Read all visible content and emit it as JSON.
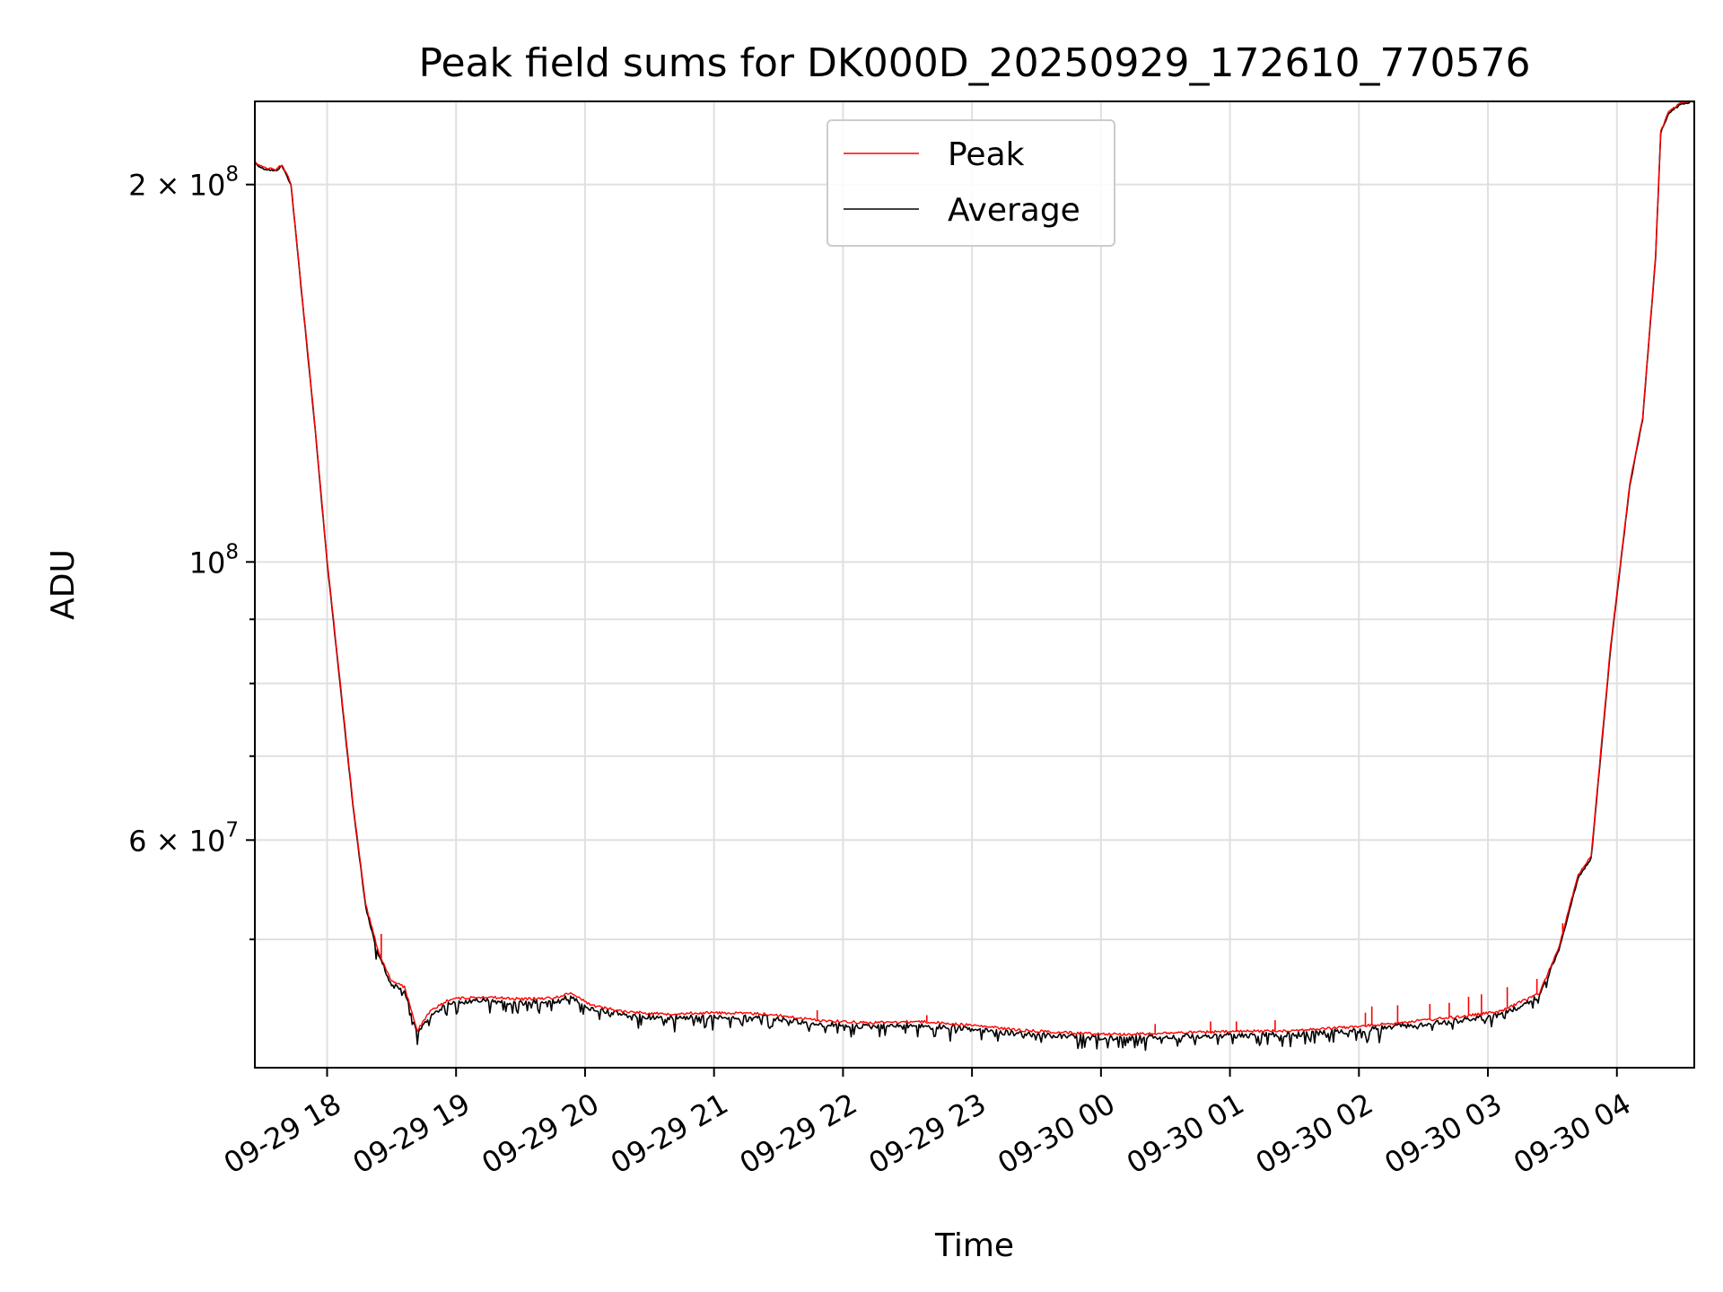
{
  "chart_data": {
    "type": "line",
    "title": "Peak field sums for DK000D_20250929_172610_770576",
    "xlabel": "Time",
    "ylabel": "ADU",
    "yscale": "log",
    "xlim": [
      17.44,
      28.6
    ],
    "ylim": [
      39500000,
      233000000
    ],
    "x_unit": "hours since 2025-09-29 00:00",
    "x_ticks": [
      {
        "value": 18,
        "label": "09-29 18"
      },
      {
        "value": 19,
        "label": "09-29 19"
      },
      {
        "value": 20,
        "label": "09-29 20"
      },
      {
        "value": 21,
        "label": "09-29 21"
      },
      {
        "value": 22,
        "label": "09-29 22"
      },
      {
        "value": 23,
        "label": "09-29 23"
      },
      {
        "value": 24,
        "label": "09-30 00"
      },
      {
        "value": 25,
        "label": "09-30 01"
      },
      {
        "value": 26,
        "label": "09-30 02"
      },
      {
        "value": 27,
        "label": "09-30 03"
      },
      {
        "value": 28,
        "label": "09-30 04"
      }
    ],
    "y_major_ticks": [
      {
        "value": 60000000,
        "mantissa": "6",
        "exponent": "7"
      },
      {
        "value": 100000000,
        "mantissa": "",
        "exponent": "8"
      },
      {
        "value": 200000000,
        "mantissa": "2",
        "exponent": "8"
      }
    ],
    "y_minor_ticks": [
      50000000,
      70000000,
      80000000,
      90000000
    ],
    "legend": {
      "position": "upper center",
      "entries": [
        {
          "label": "Peak",
          "color": "#ff0000"
        },
        {
          "label": "Average",
          "color": "#000000"
        }
      ]
    },
    "series": [
      {
        "name": "Average",
        "color": "#000000",
        "points": [
          [
            17.44,
            208000000
          ],
          [
            17.5,
            206000000
          ],
          [
            17.6,
            205000000
          ],
          [
            17.65,
            207000000
          ],
          [
            17.72,
            200000000
          ],
          [
            17.8,
            165000000
          ],
          [
            17.9,
            130000000
          ],
          [
            18.0,
            100000000
          ],
          [
            18.1,
            80000000
          ],
          [
            18.2,
            64000000
          ],
          [
            18.3,
            53000000
          ],
          [
            18.4,
            48500000
          ],
          [
            18.5,
            46000000
          ],
          [
            18.6,
            45500000
          ],
          [
            18.7,
            42000000
          ],
          [
            18.8,
            43500000
          ],
          [
            18.95,
            44500000
          ],
          [
            19.2,
            44700000
          ],
          [
            19.5,
            44500000
          ],
          [
            19.75,
            44600000
          ],
          [
            19.9,
            45000000
          ],
          [
            20.05,
            44000000
          ],
          [
            20.3,
            43500000
          ],
          [
            20.6,
            43300000
          ],
          [
            21.0,
            43400000
          ],
          [
            21.4,
            43300000
          ],
          [
            21.8,
            42800000
          ],
          [
            22.2,
            42600000
          ],
          [
            22.6,
            42700000
          ],
          [
            23.0,
            42400000
          ],
          [
            23.4,
            42000000
          ],
          [
            23.8,
            41800000
          ],
          [
            24.2,
            41700000
          ],
          [
            24.5,
            41800000
          ],
          [
            25.0,
            41900000
          ],
          [
            25.5,
            42000000
          ],
          [
            26.0,
            42300000
          ],
          [
            26.4,
            42700000
          ],
          [
            26.8,
            43100000
          ],
          [
            27.1,
            43500000
          ],
          [
            27.4,
            45000000
          ],
          [
            27.55,
            49000000
          ],
          [
            27.7,
            56000000
          ],
          [
            27.8,
            58000000
          ],
          [
            27.95,
            85000000
          ],
          [
            28.1,
            115000000
          ],
          [
            28.2,
            130000000
          ],
          [
            28.3,
            175000000
          ],
          [
            28.34,
            220000000
          ],
          [
            28.4,
            228000000
          ],
          [
            28.5,
            232000000
          ],
          [
            28.6,
            233000000
          ]
        ]
      },
      {
        "name": "Peak",
        "color": "#ff0000",
        "points": [
          [
            17.44,
            208500000
          ],
          [
            17.5,
            206500000
          ],
          [
            17.6,
            205500000
          ],
          [
            17.65,
            207500000
          ],
          [
            17.72,
            200500000
          ],
          [
            17.8,
            165500000
          ],
          [
            17.9,
            130500000
          ],
          [
            18.0,
            100500000
          ],
          [
            18.1,
            80500000
          ],
          [
            18.2,
            64300000
          ],
          [
            18.3,
            53300000
          ],
          [
            18.4,
            48800000
          ],
          [
            18.5,
            46300000
          ],
          [
            18.6,
            45800000
          ],
          [
            18.7,
            42300000
          ],
          [
            18.8,
            43800000
          ],
          [
            18.95,
            44800000
          ],
          [
            19.2,
            45000000
          ],
          [
            19.5,
            44800000
          ],
          [
            19.75,
            44900000
          ],
          [
            19.9,
            45300000
          ],
          [
            20.05,
            44300000
          ],
          [
            20.3,
            43800000
          ],
          [
            20.6,
            43600000
          ],
          [
            21.0,
            43700000
          ],
          [
            21.4,
            43600000
          ],
          [
            21.8,
            43100000
          ],
          [
            22.2,
            42900000
          ],
          [
            22.6,
            43000000
          ],
          [
            23.0,
            42700000
          ],
          [
            23.4,
            42300000
          ],
          [
            23.8,
            42100000
          ],
          [
            24.2,
            42000000
          ],
          [
            24.5,
            42100000
          ],
          [
            25.0,
            42200000
          ],
          [
            25.5,
            42300000
          ],
          [
            26.0,
            42600000
          ],
          [
            26.4,
            43000000
          ],
          [
            26.8,
            43400000
          ],
          [
            27.1,
            43800000
          ],
          [
            27.4,
            45300000
          ],
          [
            27.55,
            49300000
          ],
          [
            27.7,
            56300000
          ],
          [
            27.8,
            58300000
          ],
          [
            27.95,
            85500000
          ],
          [
            28.1,
            115500000
          ],
          [
            28.2,
            130500000
          ],
          [
            28.3,
            175500000
          ],
          [
            28.34,
            220500000
          ],
          [
            28.4,
            228500000
          ],
          [
            28.5,
            232500000
          ],
          [
            28.6,
            233000000
          ]
        ]
      }
    ],
    "peak_spikes": [
      {
        "x": 18.42,
        "y": 50500000
      },
      {
        "x": 21.8,
        "y": 43900000
      },
      {
        "x": 22.65,
        "y": 43500000
      },
      {
        "x": 24.42,
        "y": 42800000
      },
      {
        "x": 24.85,
        "y": 43000000
      },
      {
        "x": 25.05,
        "y": 43000000
      },
      {
        "x": 25.35,
        "y": 43100000
      },
      {
        "x": 26.05,
        "y": 43700000
      },
      {
        "x": 26.1,
        "y": 44200000
      },
      {
        "x": 26.3,
        "y": 44300000
      },
      {
        "x": 26.55,
        "y": 44400000
      },
      {
        "x": 26.7,
        "y": 44500000
      },
      {
        "x": 26.85,
        "y": 45000000
      },
      {
        "x": 26.95,
        "y": 45200000
      },
      {
        "x": 27.15,
        "y": 45800000
      },
      {
        "x": 27.38,
        "y": 46500000
      },
      {
        "x": 27.5,
        "y": 47800000
      },
      {
        "x": 27.58,
        "y": 51500000
      },
      {
        "x": 27.65,
        "y": 54000000
      }
    ]
  }
}
